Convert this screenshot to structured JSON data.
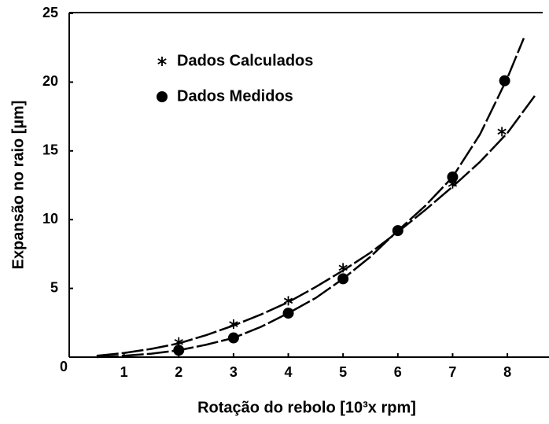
{
  "chart_data": {
    "type": "scatter",
    "xlabel": "Rotação do rebolo [10³x rpm]",
    "ylabel": "Expansão no raio [µm]",
    "xlim": [
      0,
      8.76
    ],
    "ylim": [
      0,
      25
    ],
    "xticks": [
      1,
      2,
      3,
      4,
      5,
      6,
      7,
      8
    ],
    "yticks": [
      0,
      5,
      10,
      15,
      20,
      25
    ],
    "legend": "upper left",
    "series": [
      {
        "name": "Dados Calculados",
        "marker": "asterisk",
        "color": "#000000",
        "x": [
          2,
          3,
          4,
          5,
          6,
          7,
          7.9
        ],
        "values": [
          1.1,
          2.4,
          4.1,
          6.5,
          9.2,
          12.6,
          16.4
        ]
      },
      {
        "name": "Dados Medidos",
        "marker": "circle",
        "color": "#000000",
        "x": [
          2,
          3,
          4,
          5,
          6,
          7,
          7.95
        ],
        "values": [
          0.5,
          1.4,
          3.2,
          5.7,
          9.2,
          13.1,
          20.1
        ]
      }
    ],
    "curves": [
      {
        "x": [
          0.5,
          1,
          1.5,
          2,
          2.5,
          3,
          3.5,
          4,
          4.5,
          5,
          5.5,
          6,
          6.5,
          7,
          7.5,
          8,
          8.5
        ],
        "values": [
          0.1,
          0.3,
          0.6,
          1.0,
          1.6,
          2.3,
          3.1,
          4.0,
          5.1,
          6.3,
          7.6,
          9.1,
          10.7,
          12.4,
          14.2,
          16.3,
          19.0
        ]
      },
      {
        "x": [
          0.5,
          1,
          1.5,
          2,
          2.5,
          3,
          3.5,
          4,
          4.5,
          5,
          5.5,
          6,
          6.5,
          7,
          7.5,
          8,
          8.3
        ],
        "values": [
          0,
          0.1,
          0.25,
          0.5,
          0.9,
          1.4,
          2.2,
          3.2,
          4.3,
          5.7,
          7.3,
          9.2,
          11.0,
          13.1,
          16.2,
          20.3,
          23.2
        ]
      }
    ]
  }
}
